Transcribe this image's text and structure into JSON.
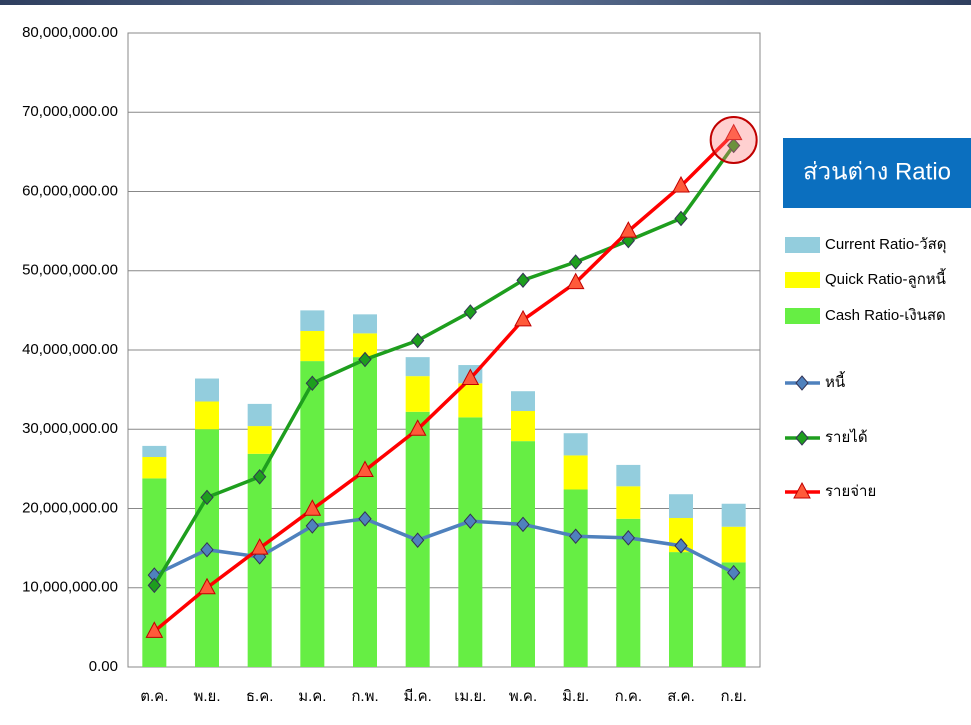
{
  "chart_data": {
    "type": "bar",
    "categories": [
      "ต.ค.",
      "พ.ย.",
      "ธ.ค.",
      "ม.ค.",
      "ก.พ.",
      "มี.ค.",
      "เม.ย.",
      "พ.ค.",
      "มิ.ย.",
      "ก.ค.",
      "ส.ค.",
      "ก.ย."
    ],
    "legend_title": "ส่วนต่าง Ratio",
    "legend_title_color": "#0b6fbf",
    "legend": "right",
    "grid": true,
    "ylim": [
      0,
      80000000
    ],
    "yticks": [
      {
        "value": 0,
        "label": "0.00"
      },
      {
        "value": 10000000,
        "label": "10,000,000.00"
      },
      {
        "value": 20000000,
        "label": "20,000,000.00"
      },
      {
        "value": 30000000,
        "label": "30,000,000.00"
      },
      {
        "value": 40000000,
        "label": "40,000,000.00"
      },
      {
        "value": 50000000,
        "label": "50,000,000.00"
      },
      {
        "value": 60000000,
        "label": "60,000,000.00"
      },
      {
        "value": 70000000,
        "label": "70,000,000.00"
      },
      {
        "value": 80000000,
        "label": "80,000,000.00"
      }
    ],
    "series": [
      {
        "name": "Current Ratio-วัสดุ",
        "type": "bar",
        "color": "#93cddd",
        "values": [
          1400000,
          2900000,
          2800000,
          2600000,
          2400000,
          2400000,
          2300000,
          2500000,
          2800000,
          2700000,
          3000000,
          2900000
        ]
      },
      {
        "name": "Quick Ratio-ลูกหนี้",
        "type": "bar",
        "color": "#ffff00",
        "values": [
          2700000,
          3500000,
          3500000,
          3800000,
          3000000,
          4500000,
          4300000,
          3800000,
          4300000,
          4100000,
          4300000,
          4500000
        ]
      },
      {
        "name": "Cash Ratio-เงินสด",
        "type": "bar",
        "color": "#66ee44",
        "values": [
          23800000,
          30000000,
          26900000,
          38600000,
          39100000,
          32200000,
          31500000,
          28500000,
          22400000,
          18700000,
          14500000,
          13200000
        ]
      },
      {
        "name": "หนี้",
        "type": "line",
        "marker": "diamond",
        "color": "#4f81bd",
        "values": [
          11600000,
          14800000,
          13900000,
          17800000,
          18700000,
          16000000,
          18400000,
          18000000,
          16500000,
          16300000,
          15300000,
          11900000
        ]
      },
      {
        "name": "รายได้",
        "type": "line",
        "marker": "diamond",
        "color": "#1e9e1e",
        "values": [
          10300000,
          21400000,
          24000000,
          35800000,
          38800000,
          41200000,
          44800000,
          48800000,
          51100000,
          53800000,
          56600000,
          65800000
        ]
      },
      {
        "name": "รายจ่าย",
        "type": "line",
        "marker": "triangle",
        "color": "#ff0000",
        "values": [
          4500000,
          10000000,
          15000000,
          19900000,
          24800000,
          30000000,
          36400000,
          43800000,
          48500000,
          55000000,
          60700000,
          67300000
        ]
      }
    ]
  }
}
